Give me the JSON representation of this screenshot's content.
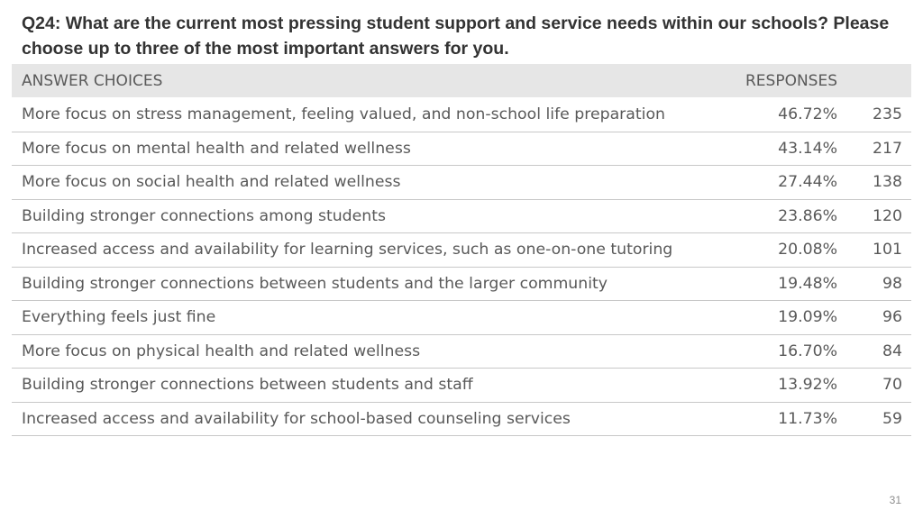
{
  "question": {
    "title": "Q24: What are the current most pressing student support and service needs within our schools? Please choose up to three of the most important answers for you."
  },
  "table": {
    "header_answer": "ANSWER CHOICES",
    "header_responses": "RESPONSES",
    "rows": [
      {
        "answer": "More focus on stress management, feeling valued, and non-school life preparation",
        "percent": "46.72%",
        "count": "235"
      },
      {
        "answer": "More focus on mental health and related wellness",
        "percent": "43.14%",
        "count": "217"
      },
      {
        "answer": "More focus on social health and related wellness",
        "percent": "27.44%",
        "count": "138"
      },
      {
        "answer": "Building stronger connections among students",
        "percent": "23.86%",
        "count": "120"
      },
      {
        "answer": "Increased access and availability for learning services, such as one-on-one tutoring",
        "percent": "20.08%",
        "count": "101"
      },
      {
        "answer": "Building stronger connections between students and the larger community",
        "percent": "19.48%",
        "count": "98"
      },
      {
        "answer": "Everything feels just fine",
        "percent": "19.09%",
        "count": "96"
      },
      {
        "answer": "More focus on physical health and related wellness",
        "percent": "16.70%",
        "count": "84"
      },
      {
        "answer": "Building stronger connections between students and staff",
        "percent": "13.92%",
        "count": "70"
      },
      {
        "answer": "Increased access and availability for school-based counseling services",
        "percent": "11.73%",
        "count": "59"
      }
    ]
  },
  "footer": {
    "page_number": "31"
  }
}
